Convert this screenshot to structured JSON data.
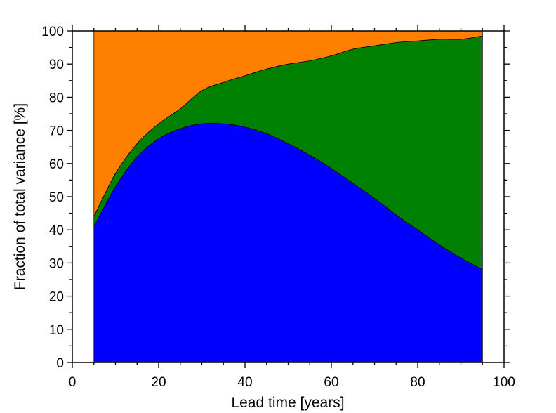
{
  "chart_data": {
    "type": "area",
    "stacked": true,
    "title": "",
    "xlabel": "Lead time  [years]",
    "ylabel": "Fraction of total variance  [%]",
    "xlim": [
      0,
      100
    ],
    "ylim": [
      0,
      100
    ],
    "xticks": [
      0,
      20,
      40,
      60,
      80,
      100
    ],
    "yticks": [
      0,
      10,
      20,
      30,
      40,
      50,
      60,
      70,
      80,
      90,
      100
    ],
    "grid": false,
    "legend": "none",
    "x": [
      5,
      10,
      15,
      20,
      25,
      30,
      35,
      40,
      45,
      50,
      55,
      60,
      65,
      70,
      75,
      80,
      85,
      90,
      95
    ],
    "series": [
      {
        "color": "#0000ff",
        "values": [
          41,
          53,
          62,
          67.5,
          70.5,
          72,
          72,
          71,
          69,
          66,
          62.5,
          58.5,
          54,
          49.5,
          44.5,
          40,
          35.5,
          31.5,
          28
        ]
      },
      {
        "color": "#008000",
        "values": [
          3,
          4,
          4,
          4.5,
          6,
          10,
          12.5,
          15.5,
          19.5,
          24,
          28.5,
          34,
          40.5,
          46,
          52,
          57,
          62,
          66,
          70.5
        ]
      },
      {
        "color": "#ff8000",
        "values": [
          56,
          43,
          34,
          28,
          23.5,
          18,
          15.5,
          13.5,
          11.5,
          10,
          9,
          7.5,
          5.5,
          4.5,
          3.5,
          3,
          2.5,
          2.5,
          1.5
        ]
      }
    ]
  }
}
